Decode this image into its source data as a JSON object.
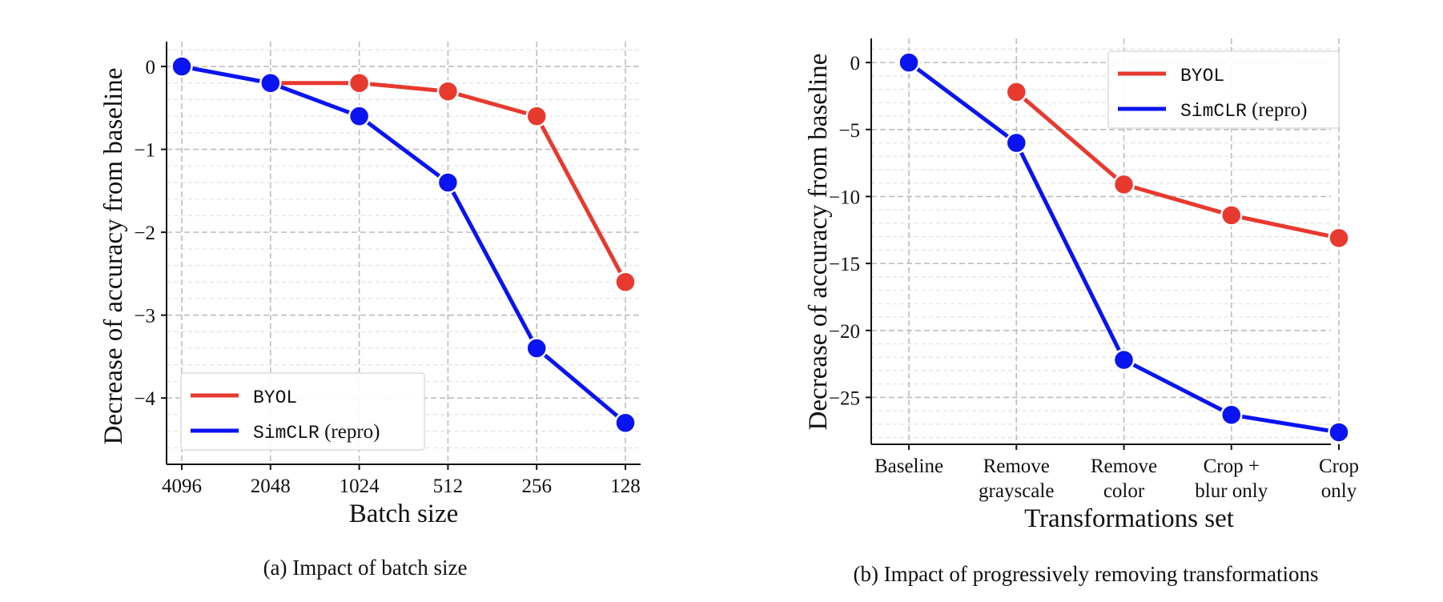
{
  "chart_data": [
    {
      "type": "line",
      "caption": "(a) Impact of batch size",
      "xlabel": "Batch size",
      "ylabel": "Decrease of accuracy from baseline",
      "categories": [
        "4096",
        "2048",
        "1024",
        "512",
        "256",
        "128"
      ],
      "ylim": [
        -4.8,
        0.3
      ],
      "yticks": [
        0,
        -1,
        -2,
        -3,
        -4
      ],
      "ytick_labels": [
        "0",
        "−1",
        "−2",
        "−3",
        "−4"
      ],
      "grid": true,
      "legend_position": "bottom-left",
      "series": [
        {
          "name_mono": "BYOL",
          "name_suffix": "",
          "color": "#e8392f",
          "values": [
            null,
            -0.2,
            -0.2,
            -0.3,
            -0.6,
            -2.6
          ]
        },
        {
          "name_mono": "SimCLR",
          "name_suffix": " (repro)",
          "color": "#0a14f0",
          "values": [
            0,
            -0.2,
            -0.6,
            -1.4,
            -3.4,
            -4.3
          ]
        }
      ]
    },
    {
      "type": "line",
      "caption": "(b) Impact of progressively removing transformations",
      "xlabel": "Transformations set",
      "ylabel": "Decrease of accuracy from baseline",
      "categories": [
        [
          "Baseline"
        ],
        [
          "Remove",
          "grayscale"
        ],
        [
          "Remove",
          "color"
        ],
        [
          "Crop +",
          "blur only"
        ],
        [
          "Crop",
          "only"
        ]
      ],
      "ylim": [
        -28.5,
        1.8
      ],
      "yticks": [
        0,
        -5,
        -10,
        -15,
        -20,
        -25
      ],
      "ytick_labels": [
        "0",
        "−5",
        "−10",
        "−15",
        "−20",
        "−25"
      ],
      "grid": true,
      "legend_position": "top-right",
      "series": [
        {
          "name_mono": "BYOL",
          "name_suffix": "",
          "color": "#e8392f",
          "values": [
            null,
            -2.2,
            -9.1,
            -11.4,
            -13.1
          ]
        },
        {
          "name_mono": "SimCLR",
          "name_suffix": " (repro)",
          "color": "#0a14f0",
          "values": [
            0,
            -6.0,
            -22.2,
            -26.3,
            -27.6
          ]
        }
      ]
    }
  ]
}
